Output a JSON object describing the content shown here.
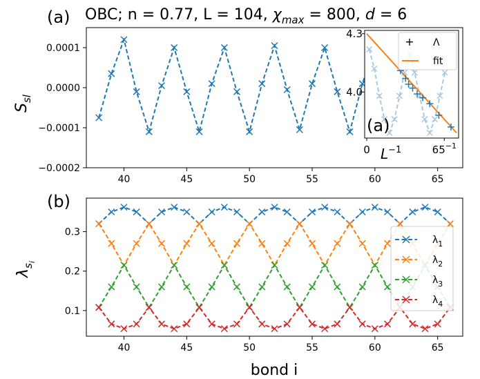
{
  "figure": {
    "title": "OBC; n = 0.77, L = 104, χ_max = 800, d = 6",
    "title_parts": {
      "prefix": "OBC; n = 0.77, L = 104, ",
      "chi": "χ",
      "chi_sub": "max",
      "mid": " = 800, ",
      "d": "d",
      "suffix": " = 6"
    }
  },
  "colors": {
    "blue": "#1f77b4",
    "orange": "#ff7f0e",
    "green": "#2ca02c",
    "red": "#d62728",
    "light_blue": "#aac8e0"
  },
  "chart_data": [
    {
      "id": "panel_a",
      "type": "line",
      "panel_label": "(a)",
      "ylabel": {
        "main": "S",
        "sub": "sl"
      },
      "xlabel": "",
      "xlim": [
        37,
        67
      ],
      "ylim": [
        -0.0002,
        0.00015
      ],
      "xticks": [
        40,
        45,
        50,
        55,
        60,
        65
      ],
      "yticks": [
        {
          "v": -0.0002,
          "label": "−0.0002"
        },
        {
          "v": -0.0001,
          "label": "−0.0001"
        },
        {
          "v": 0.0,
          "label": "0.0000"
        },
        {
          "v": 0.0001,
          "label": "0.0001"
        }
      ],
      "marker": "x",
      "linestyle": "dashed",
      "series": [
        {
          "color": "blue",
          "x": [
            38,
            39,
            40,
            41,
            42,
            43,
            44,
            45,
            46,
            47,
            48,
            49,
            50,
            51,
            52,
            53,
            54,
            55,
            56,
            57,
            58,
            59,
            60,
            61,
            62,
            63,
            64,
            65,
            66
          ],
          "y": [
            -7.5e-05,
            3.5e-05,
            0.00012,
            -1e-05,
            -0.00011,
            5e-06,
            0.0001,
            -1e-05,
            -0.00011,
            1e-05,
            0.0001,
            -1e-05,
            -0.00011,
            1e-05,
            0.000105,
            -5e-06,
            -0.000105,
            1e-05,
            0.0001,
            -1e-05,
            -0.00011,
            1e-05,
            0.0001,
            -1e-05,
            -0.00011,
            1e-05,
            0.0001,
            -1e-05,
            -0.00011
          ]
        }
      ],
      "inset": {
        "panel_label": "(a)",
        "xlabel": {
          "main": "L",
          "sup": "−1"
        },
        "xlim": [
          0,
          0.0178
        ],
        "ylim": [
          3.77,
          4.31
        ],
        "xticks": [
          {
            "v": 0,
            "label": "0"
          },
          {
            "v": 0.01538,
            "label_main": "65",
            "label_sup": "−1"
          }
        ],
        "yticks": [
          {
            "v": 4.0,
            "label": "4.0"
          },
          {
            "v": 4.3,
            "label": "4.3"
          }
        ],
        "legend": [
          {
            "marker": "+",
            "label": "Λ",
            "color": "blue"
          },
          {
            "line": true,
            "label": "fit",
            "color": "orange"
          }
        ],
        "fit_line": {
          "x": [
            0.0,
            0.0178
          ],
          "y": [
            4.3,
            3.79
          ]
        },
        "points": {
          "x": [
            0.0067,
            0.0077,
            0.0083,
            0.0091,
            0.01,
            0.0111,
            0.0125,
            0.0143,
            0.0167
          ],
          "y": [
            4.11,
            4.07,
            4.04,
            4.02,
            3.99,
            3.97,
            3.94,
            3.88,
            3.82
          ]
        },
        "background_series": {
          "x": [
            0.0005,
            0.0015,
            0.0025,
            0.0035,
            0.0045,
            0.0055,
            0.0065,
            0.0075,
            0.0085,
            0.0095,
            0.0105,
            0.0115,
            0.0125,
            0.0135,
            0.0145,
            0.0155
          ],
          "y": [
            4.22,
            4.12,
            3.98,
            3.86,
            3.79,
            3.86,
            3.98,
            4.1,
            4.2,
            4.1,
            3.98,
            3.86,
            3.79,
            3.86,
            3.98,
            4.1
          ]
        }
      }
    },
    {
      "id": "panel_b",
      "type": "line",
      "panel_label": "(b)",
      "xlabel": "bond i",
      "ylabel": {
        "main": "λ",
        "sub": "s",
        "subsub": "i"
      },
      "xlim": [
        37,
        67
      ],
      "ylim": [
        0.035,
        0.385
      ],
      "xticks": [
        40,
        45,
        50,
        55,
        60,
        65
      ],
      "yticks": [
        {
          "v": 0.1,
          "label": "0.1"
        },
        {
          "v": 0.2,
          "label": "0.2"
        },
        {
          "v": 0.3,
          "label": "0.3"
        }
      ],
      "marker": "x",
      "linestyle": "dashed",
      "series": [
        {
          "name": "λ",
          "name_sub": "1",
          "color": "blue",
          "x": [
            38,
            39,
            40,
            41,
            42,
            43,
            44,
            45,
            46,
            47,
            48,
            49,
            50,
            51,
            52,
            53,
            54,
            55,
            56,
            57,
            58,
            59,
            60,
            61,
            62,
            63,
            64,
            65,
            66
          ],
          "y": [
            0.32,
            0.35,
            0.362,
            0.35,
            0.32,
            0.35,
            0.362,
            0.35,
            0.32,
            0.35,
            0.362,
            0.35,
            0.32,
            0.35,
            0.362,
            0.35,
            0.32,
            0.35,
            0.362,
            0.35,
            0.32,
            0.35,
            0.362,
            0.35,
            0.32,
            0.35,
            0.362,
            0.35,
            0.32
          ]
        },
        {
          "name": "λ",
          "name_sub": "2",
          "color": "orange",
          "x": [
            38,
            39,
            40,
            41,
            42,
            43,
            44,
            45,
            46,
            47,
            48,
            49,
            50,
            51,
            52,
            53,
            54,
            55,
            56,
            57,
            58,
            59,
            60,
            61,
            62,
            63,
            64,
            65,
            66
          ],
          "y": [
            0.32,
            0.27,
            0.215,
            0.27,
            0.32,
            0.27,
            0.215,
            0.27,
            0.32,
            0.27,
            0.215,
            0.27,
            0.32,
            0.27,
            0.215,
            0.27,
            0.32,
            0.27,
            0.215,
            0.27,
            0.32,
            0.27,
            0.215,
            0.27,
            0.32,
            0.27,
            0.215,
            0.27,
            0.32
          ]
        },
        {
          "name": "λ",
          "name_sub": "3",
          "color": "green",
          "x": [
            38,
            39,
            40,
            41,
            42,
            43,
            44,
            45,
            46,
            47,
            48,
            49,
            50,
            51,
            52,
            53,
            54,
            55,
            56,
            57,
            58,
            59,
            60,
            61,
            62,
            63,
            64,
            65,
            66
          ],
          "y": [
            0.108,
            0.16,
            0.215,
            0.16,
            0.108,
            0.16,
            0.215,
            0.16,
            0.108,
            0.16,
            0.215,
            0.16,
            0.108,
            0.16,
            0.215,
            0.16,
            0.108,
            0.16,
            0.215,
            0.16,
            0.108,
            0.16,
            0.215,
            0.16,
            0.108,
            0.16,
            0.215,
            0.16,
            0.108
          ]
        },
        {
          "name": "λ",
          "name_sub": "4",
          "color": "red",
          "x": [
            38,
            39,
            40,
            41,
            42,
            43,
            44,
            45,
            46,
            47,
            48,
            49,
            50,
            51,
            52,
            53,
            54,
            55,
            56,
            57,
            58,
            59,
            60,
            61,
            62,
            63,
            64,
            65,
            66
          ],
          "y": [
            0.108,
            0.066,
            0.054,
            0.066,
            0.108,
            0.066,
            0.054,
            0.066,
            0.108,
            0.066,
            0.054,
            0.066,
            0.108,
            0.066,
            0.054,
            0.066,
            0.108,
            0.066,
            0.054,
            0.066,
            0.108,
            0.066,
            0.054,
            0.066,
            0.108,
            0.066,
            0.054,
            0.066,
            0.108
          ]
        }
      ],
      "legend_position": "right"
    }
  ]
}
